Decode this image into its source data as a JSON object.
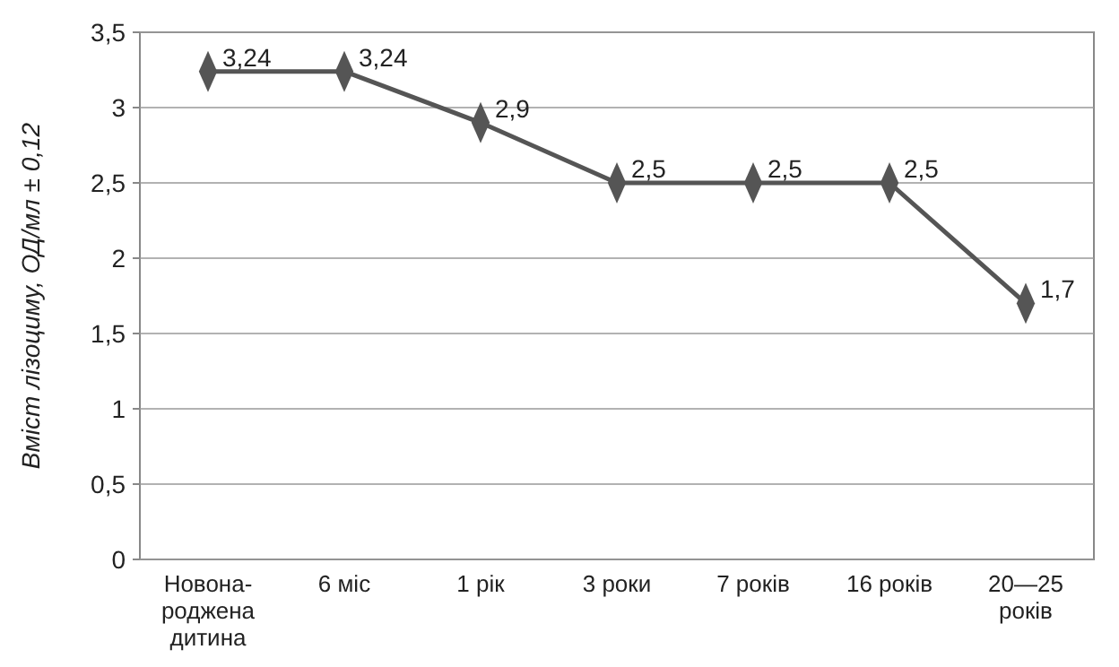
{
  "chart_data": {
    "type": "line",
    "ylabel": "Вміст лізоциму, ОД/мл ± 0,12",
    "categories": [
      "Новона-\nроджена\nдитина",
      "6 міс",
      "1 рік",
      "3 роки",
      "7 років",
      "16 років",
      "20—25\nроків"
    ],
    "series": [
      {
        "color": "#555555",
        "values": [
          3.24,
          3.24,
          2.9,
          2.5,
          2.5,
          2.5,
          1.7
        ],
        "value_labels": [
          "3,24",
          "3,24",
          "2,9",
          "2,5",
          "2,5",
          "2,5",
          "1,7"
        ]
      }
    ],
    "ylim": [
      0,
      3.5
    ],
    "yticks": [
      0,
      {
        "value": 0.5,
        "label": "0,5"
      },
      1,
      {
        "value": 1.5,
        "label": "1,5"
      },
      2,
      {
        "value": 2.5,
        "label": "2,5"
      },
      3,
      {
        "value": 3.5,
        "label": "3,5"
      }
    ],
    "grid": "y",
    "marker": "diamond",
    "line_style": "solid"
  }
}
